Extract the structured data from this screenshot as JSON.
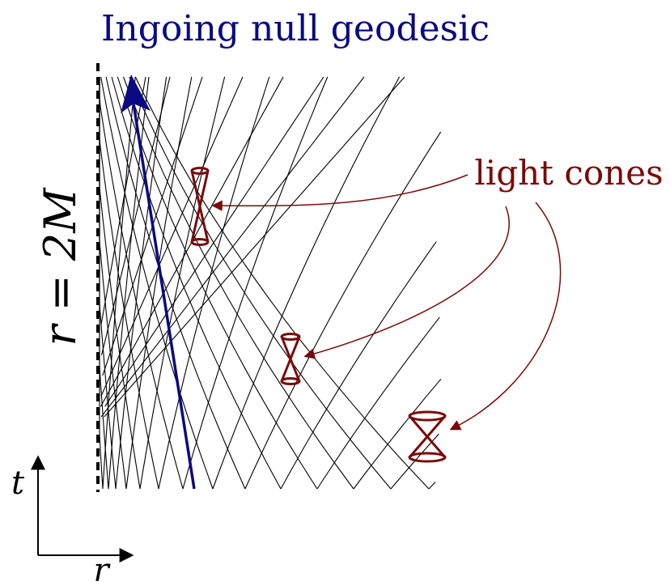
{
  "title": "Ingoing null geodesic",
  "horizon_label": "r = 2M",
  "cones_label": "light cones",
  "axes": {
    "t_label": "t",
    "r_label": "r"
  },
  "colors": {
    "geodesic": "#0a0a82",
    "cones": "#7a0a0a",
    "grid": "#000000"
  }
}
